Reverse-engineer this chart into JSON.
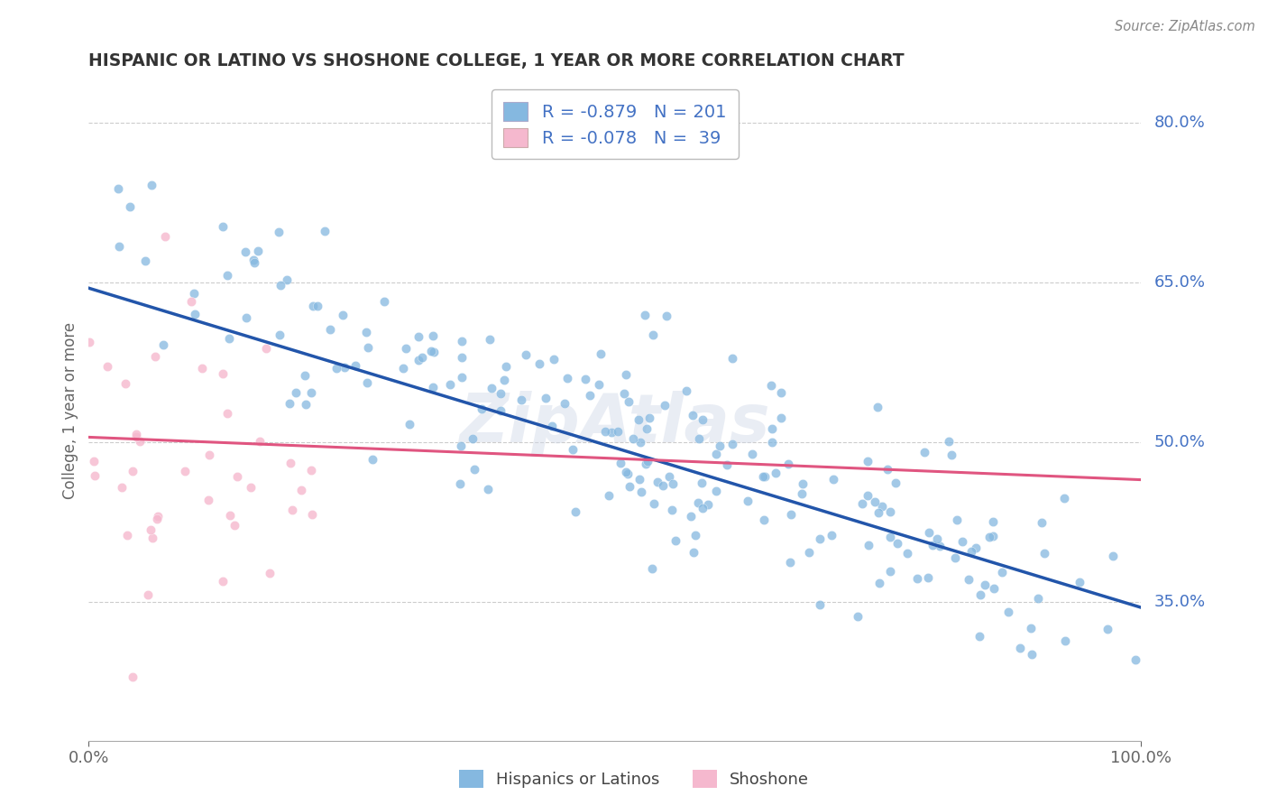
{
  "title": "HISPANIC OR LATINO VS SHOSHONE COLLEGE, 1 YEAR OR MORE CORRELATION CHART",
  "source_text": "Source: ZipAtlas.com",
  "ylabel": "College, 1 year or more",
  "xlim": [
    0.0,
    1.0
  ],
  "ylim": [
    0.22,
    0.84
  ],
  "xtick_labels": [
    "0.0%",
    "100.0%"
  ],
  "xtick_positions": [
    0.0,
    1.0
  ],
  "ytick_labels_right": [
    "35.0%",
    "50.0%",
    "65.0%",
    "80.0%"
  ],
  "ytick_positions_right": [
    0.35,
    0.5,
    0.65,
    0.8
  ],
  "grid_color": "#cccccc",
  "background_color": "#ffffff",
  "blue_color": "#85b8e0",
  "pink_color": "#f5b8ce",
  "blue_line_color": "#2255aa",
  "pink_line_color": "#e05580",
  "title_color": "#333333",
  "label_color": "#4472c4",
  "R_blue": -0.879,
  "N_blue": 201,
  "R_pink": -0.078,
  "N_pink": 39,
  "watermark": "ZipAtlas",
  "legend_labels": [
    "Hispanics or Latinos",
    "Shoshone"
  ],
  "blue_seed": 12,
  "pink_seed": 5
}
